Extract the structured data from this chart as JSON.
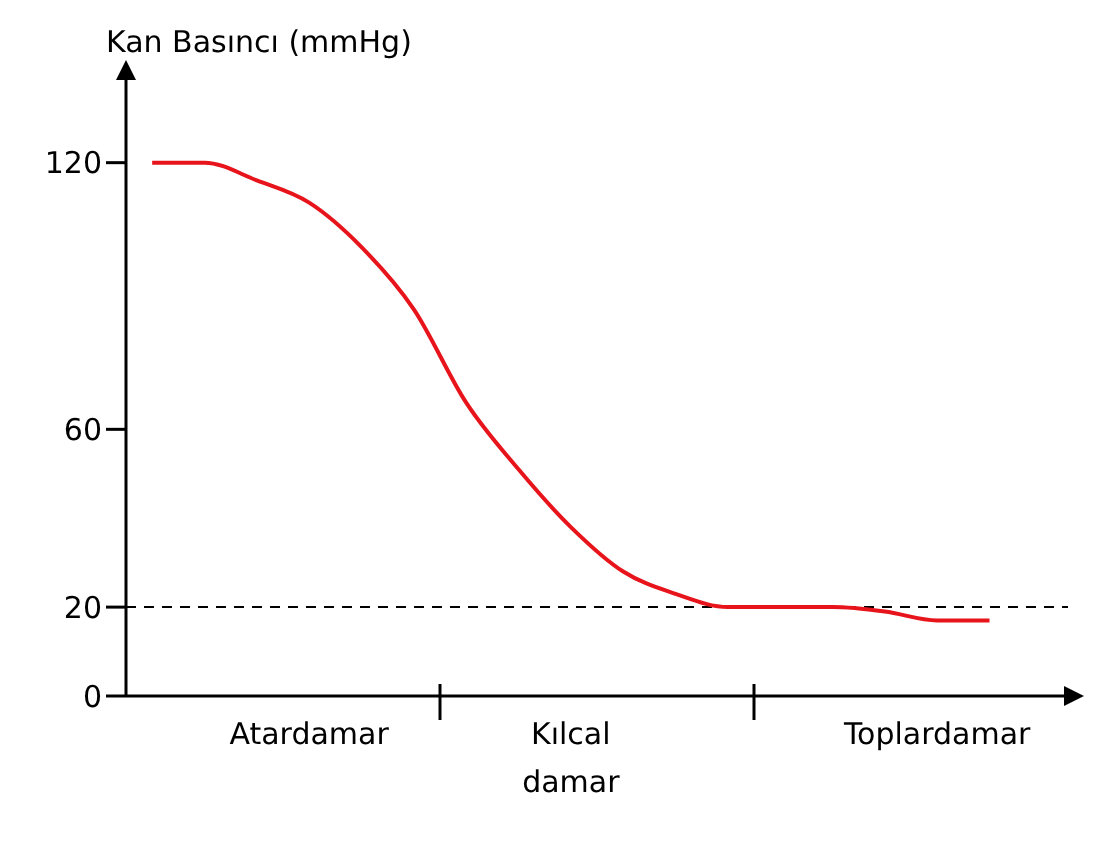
{
  "chart_data": {
    "type": "line",
    "ylabel": "Kan Basıncı (mmHg)",
    "categories": [
      null,
      null,
      null,
      "Atardamar",
      null,
      null,
      null,
      null,
      "Kılcal damar",
      null,
      null,
      null,
      null,
      null,
      null,
      "Toplardamar",
      null,
      null
    ],
    "ylim": [
      0,
      135
    ],
    "yticks": [
      0,
      20,
      60,
      120
    ],
    "series": [
      {
        "color": "#e8141c",
        "values": [
          120,
          120,
          116,
          111,
          101,
          87,
          66,
          51,
          38,
          28,
          23,
          20,
          20,
          20,
          19,
          17,
          17,
          null
        ]
      }
    ],
    "ref_lines": [
      {
        "axis": "y",
        "value": 20,
        "color": "#000000",
        "line_style": "dashed"
      }
    ],
    "grid": false,
    "legend": false,
    "marker": "none",
    "line_style": "solid"
  }
}
